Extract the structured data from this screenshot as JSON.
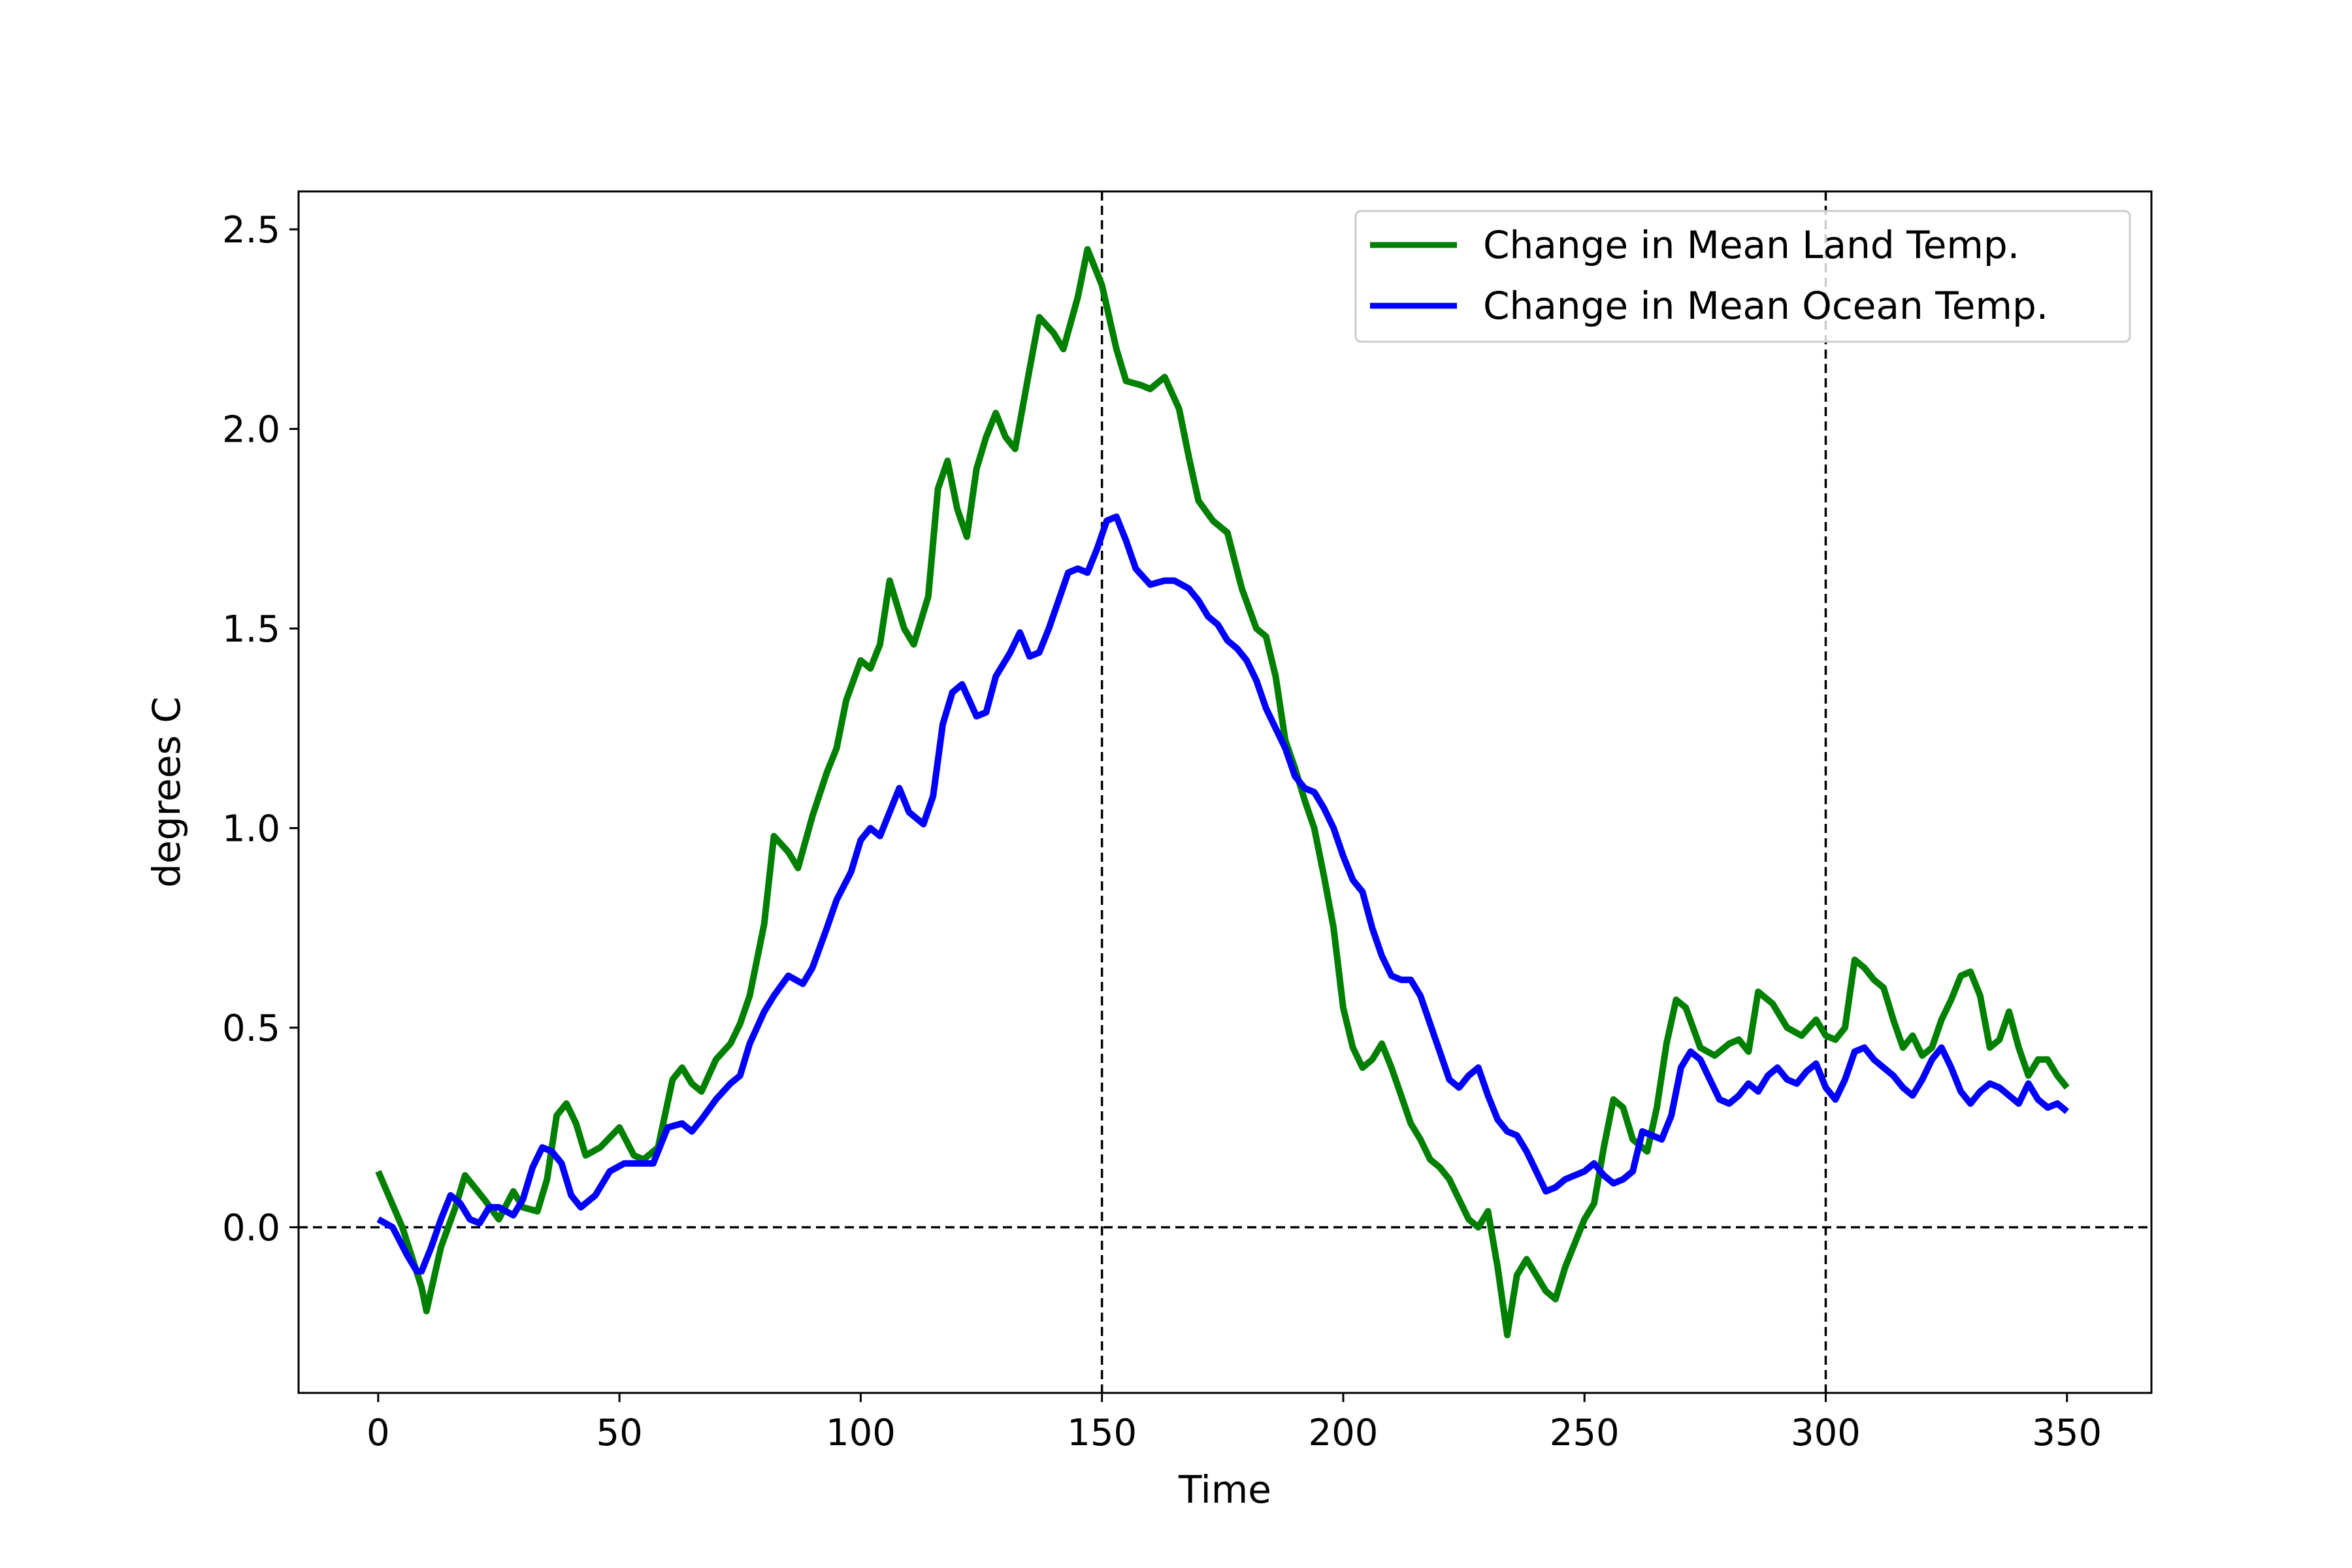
{
  "chart_data": {
    "type": "line",
    "title": "",
    "xlabel": "Time",
    "ylabel": "degrees C",
    "xlim": [
      -16.5,
      367.5
    ],
    "ylim": [
      -0.415,
      2.595
    ],
    "xticks": [
      0,
      50,
      100,
      150,
      200,
      250,
      300,
      350
    ],
    "xtick_labels": [
      "0",
      "50",
      "100",
      "150",
      "200",
      "250",
      "300",
      "350"
    ],
    "yticks": [
      0.0,
      0.5,
      1.0,
      1.5,
      2.0,
      2.5
    ],
    "ytick_labels": [
      "0.0",
      "0.5",
      "1.0",
      "1.5",
      "2.0",
      "2.5"
    ],
    "grid": false,
    "legend_position": "top-right",
    "reference_lines": [
      {
        "orientation": "horizontal",
        "value": 0.0,
        "style": "dashed"
      },
      {
        "orientation": "vertical",
        "value": 150,
        "style": "dashed"
      },
      {
        "orientation": "vertical",
        "value": 300,
        "style": "dashed"
      }
    ],
    "series": [
      {
        "name": "Change in Mean Land Temp.",
        "color": "#008000",
        "x": [
          0,
          5,
          9,
          10,
          13,
          16,
          18,
          22,
          25,
          28,
          30,
          33,
          35,
          37,
          39,
          41,
          43,
          46,
          50,
          53,
          55,
          58,
          61,
          63,
          65,
          67,
          70,
          73,
          75,
          77,
          80,
          82,
          85,
          87,
          90,
          93,
          95,
          97,
          100,
          102,
          104,
          106,
          109,
          111,
          114,
          116,
          118,
          120,
          122,
          124,
          126,
          128,
          130,
          132,
          135,
          137,
          140,
          142,
          145,
          147,
          150,
          153,
          155,
          158,
          160,
          163,
          166,
          168,
          170,
          173,
          176,
          179,
          182,
          184,
          186,
          188,
          190,
          192,
          194,
          196,
          198,
          200,
          202,
          204,
          206,
          208,
          210,
          212,
          214,
          216,
          218,
          220,
          222,
          224,
          226,
          228,
          230,
          232,
          234,
          236,
          238,
          240,
          242,
          244,
          246,
          248,
          250,
          252,
          254,
          256,
          258,
          260,
          263,
          265,
          267,
          269,
          271,
          274,
          277,
          280,
          282,
          284,
          286,
          289,
          292,
          295,
          298,
          300,
          302,
          304,
          306,
          308,
          310,
          312,
          314,
          316,
          318,
          320,
          322,
          324,
          326,
          328,
          330,
          332,
          334,
          336,
          338,
          340,
          342,
          344,
          346,
          348,
          350
        ],
        "values": [
          0.14,
          0.0,
          -0.15,
          -0.21,
          -0.05,
          0.05,
          0.13,
          0.07,
          0.02,
          0.09,
          0.05,
          0.04,
          0.12,
          0.28,
          0.31,
          0.26,
          0.18,
          0.2,
          0.25,
          0.18,
          0.17,
          0.2,
          0.37,
          0.4,
          0.36,
          0.34,
          0.42,
          0.46,
          0.51,
          0.58,
          0.76,
          0.98,
          0.94,
          0.9,
          1.03,
          1.14,
          1.2,
          1.32,
          1.42,
          1.4,
          1.46,
          1.62,
          1.5,
          1.46,
          1.58,
          1.85,
          1.92,
          1.8,
          1.73,
          1.9,
          1.98,
          2.04,
          1.98,
          1.95,
          2.15,
          2.28,
          2.24,
          2.2,
          2.33,
          2.45,
          2.36,
          2.2,
          2.12,
          2.11,
          2.1,
          2.13,
          2.05,
          1.93,
          1.82,
          1.77,
          1.74,
          1.6,
          1.5,
          1.48,
          1.38,
          1.22,
          1.15,
          1.07,
          1.0,
          0.88,
          0.75,
          0.55,
          0.45,
          0.4,
          0.42,
          0.46,
          0.4,
          0.33,
          0.26,
          0.22,
          0.17,
          0.15,
          0.12,
          0.07,
          0.02,
          0.0,
          0.04,
          -0.1,
          -0.27,
          -0.12,
          -0.08,
          -0.12,
          -0.16,
          -0.18,
          -0.1,
          -0.04,
          0.02,
          0.06,
          0.2,
          0.32,
          0.3,
          0.22,
          0.19,
          0.3,
          0.46,
          0.57,
          0.55,
          0.45,
          0.43,
          0.46,
          0.47,
          0.44,
          0.59,
          0.56,
          0.5,
          0.48,
          0.52,
          0.48,
          0.47,
          0.5,
          0.67,
          0.65,
          0.62,
          0.6,
          0.52,
          0.45,
          0.48,
          0.43,
          0.45,
          0.52,
          0.57,
          0.63,
          0.64,
          0.58,
          0.45,
          0.47,
          0.54,
          0.45,
          0.38,
          0.42,
          0.42,
          0.38,
          0.35
        ]
      },
      {
        "name": "Change in Mean Ocean Temp.",
        "color": "#0000ff",
        "x": [
          0,
          3,
          6,
          8,
          9,
          11,
          13,
          15,
          17,
          19,
          21,
          23,
          25,
          28,
          30,
          32,
          34,
          36,
          38,
          40,
          42,
          45,
          48,
          51,
          54,
          57,
          60,
          63,
          65,
          67,
          70,
          73,
          75,
          77,
          80,
          82,
          85,
          88,
          90,
          93,
          95,
          98,
          100,
          102,
          104,
          106,
          108,
          110,
          113,
          115,
          117,
          119,
          121,
          124,
          126,
          128,
          131,
          133,
          135,
          137,
          139,
          141,
          143,
          145,
          147,
          149,
          151,
          153,
          155,
          157,
          160,
          163,
          165,
          168,
          170,
          172,
          174,
          176,
          178,
          180,
          182,
          184,
          186,
          188,
          190,
          192,
          194,
          196,
          198,
          200,
          202,
          204,
          206,
          208,
          210,
          212,
          214,
          216,
          218,
          220,
          222,
          224,
          226,
          228,
          230,
          232,
          234,
          236,
          238,
          240,
          242,
          244,
          246,
          248,
          250,
          252,
          254,
          256,
          258,
          260,
          262,
          264,
          266,
          268,
          270,
          272,
          274,
          276,
          278,
          280,
          282,
          284,
          286,
          288,
          290,
          292,
          294,
          296,
          298,
          300,
          302,
          304,
          306,
          308,
          310,
          312,
          314,
          316,
          318,
          320,
          322,
          324,
          326,
          328,
          330,
          332,
          334,
          336,
          338,
          340,
          342,
          344,
          346,
          348,
          350
        ],
        "values": [
          0.02,
          0.0,
          -0.07,
          -0.11,
          -0.11,
          -0.05,
          0.02,
          0.08,
          0.06,
          0.02,
          0.01,
          0.05,
          0.05,
          0.03,
          0.07,
          0.15,
          0.2,
          0.19,
          0.16,
          0.08,
          0.05,
          0.08,
          0.14,
          0.16,
          0.16,
          0.16,
          0.25,
          0.26,
          0.24,
          0.27,
          0.32,
          0.36,
          0.38,
          0.46,
          0.54,
          0.58,
          0.63,
          0.61,
          0.65,
          0.75,
          0.82,
          0.89,
          0.97,
          1.0,
          0.98,
          1.04,
          1.1,
          1.04,
          1.01,
          1.08,
          1.26,
          1.34,
          1.36,
          1.28,
          1.29,
          1.38,
          1.44,
          1.49,
          1.43,
          1.44,
          1.5,
          1.57,
          1.64,
          1.65,
          1.64,
          1.7,
          1.77,
          1.78,
          1.72,
          1.65,
          1.61,
          1.62,
          1.62,
          1.6,
          1.57,
          1.53,
          1.51,
          1.47,
          1.45,
          1.42,
          1.37,
          1.3,
          1.25,
          1.2,
          1.13,
          1.1,
          1.09,
          1.05,
          1.0,
          0.93,
          0.87,
          0.84,
          0.75,
          0.68,
          0.63,
          0.62,
          0.62,
          0.58,
          0.51,
          0.44,
          0.37,
          0.35,
          0.38,
          0.4,
          0.33,
          0.27,
          0.24,
          0.23,
          0.19,
          0.14,
          0.09,
          0.1,
          0.12,
          0.13,
          0.14,
          0.16,
          0.13,
          0.11,
          0.12,
          0.14,
          0.24,
          0.23,
          0.22,
          0.28,
          0.4,
          0.44,
          0.42,
          0.37,
          0.32,
          0.31,
          0.33,
          0.36,
          0.34,
          0.38,
          0.4,
          0.37,
          0.36,
          0.39,
          0.41,
          0.35,
          0.32,
          0.37,
          0.44,
          0.45,
          0.42,
          0.4,
          0.38,
          0.35,
          0.33,
          0.37,
          0.42,
          0.45,
          0.4,
          0.34,
          0.31,
          0.34,
          0.36,
          0.35,
          0.33,
          0.31,
          0.36,
          0.32,
          0.3,
          0.31,
          0.29
        ]
      }
    ]
  }
}
